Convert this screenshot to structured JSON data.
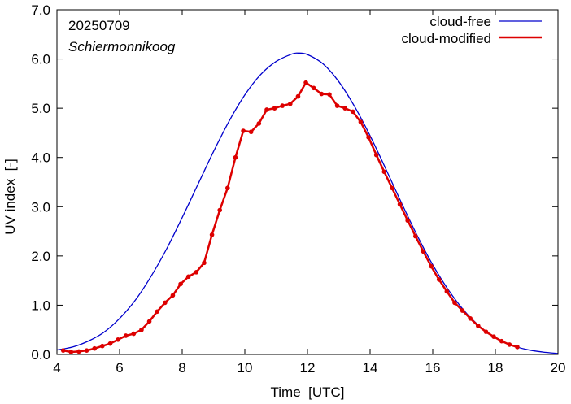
{
  "chart_data": {
    "type": "line",
    "xlabel": "Time  [UTC]",
    "ylabel": "UV index  [-]",
    "xlim": [
      4,
      20
    ],
    "ylim": [
      0,
      7
    ],
    "x_ticks": [
      4,
      6,
      8,
      10,
      12,
      14,
      16,
      18,
      20
    ],
    "x_tick_labels": [
      "4",
      "6",
      "8",
      "10",
      "12",
      "14",
      "16",
      "18",
      "20"
    ],
    "y_ticks": [
      0,
      1,
      2,
      3,
      4,
      5,
      6,
      7
    ],
    "y_tick_labels": [
      "0.0",
      "1.0",
      "2.0",
      "3.0",
      "4.0",
      "5.0",
      "6.0",
      "7.0"
    ],
    "grid": false,
    "legend_position": "top-right",
    "annotations": {
      "date": "20250709",
      "station": "Schiermonnikoog"
    },
    "series": [
      {
        "name": "cloud-free",
        "color": "#0000cc",
        "markers": false,
        "x": [
          4.0,
          4.5,
          5.0,
          5.5,
          6.0,
          6.5,
          7.0,
          7.5,
          8.0,
          8.5,
          9.0,
          9.5,
          10.0,
          10.5,
          11.0,
          11.5,
          11.7,
          12.0,
          12.5,
          13.0,
          13.5,
          14.0,
          14.5,
          15.0,
          15.5,
          16.0,
          16.5,
          17.0,
          17.5,
          18.0,
          18.5,
          19.0,
          19.5,
          20.0
        ],
        "y": [
          0.09,
          0.15,
          0.27,
          0.45,
          0.73,
          1.1,
          1.58,
          2.14,
          2.78,
          3.45,
          4.12,
          4.74,
          5.27,
          5.68,
          5.95,
          6.1,
          6.12,
          6.09,
          5.9,
          5.54,
          5.04,
          4.44,
          3.77,
          3.08,
          2.42,
          1.82,
          1.31,
          0.89,
          0.57,
          0.34,
          0.19,
          0.1,
          0.05,
          0.02
        ]
      },
      {
        "name": "cloud-modified",
        "color": "#dd0000",
        "markers": true,
        "x": [
          4.2,
          4.45,
          4.7,
          4.95,
          5.2,
          5.45,
          5.7,
          5.95,
          6.2,
          6.45,
          6.7,
          6.95,
          7.2,
          7.45,
          7.7,
          7.95,
          8.2,
          8.45,
          8.7,
          8.95,
          9.2,
          9.45,
          9.7,
          9.95,
          10.2,
          10.45,
          10.7,
          10.95,
          11.2,
          11.45,
          11.7,
          11.95,
          12.2,
          12.45,
          12.7,
          12.95,
          13.2,
          13.45,
          13.7,
          13.95,
          14.2,
          14.45,
          14.7,
          14.95,
          15.2,
          15.45,
          15.7,
          15.95,
          16.2,
          16.45,
          16.7,
          16.95,
          17.2,
          17.45,
          17.7,
          17.95,
          18.2,
          18.45,
          18.7
        ],
        "y": [
          0.08,
          0.05,
          0.06,
          0.08,
          0.12,
          0.17,
          0.22,
          0.3,
          0.38,
          0.42,
          0.5,
          0.67,
          0.87,
          1.05,
          1.2,
          1.43,
          1.58,
          1.67,
          1.86,
          2.43,
          2.93,
          3.38,
          4.0,
          4.54,
          4.52,
          4.69,
          4.97,
          5.0,
          5.05,
          5.09,
          5.24,
          5.52,
          5.41,
          5.29,
          5.28,
          5.05,
          5.0,
          4.93,
          4.72,
          4.41,
          4.05,
          3.71,
          3.38,
          3.05,
          2.72,
          2.4,
          2.09,
          1.79,
          1.52,
          1.28,
          1.05,
          0.89,
          0.73,
          0.58,
          0.46,
          0.36,
          0.27,
          0.2,
          0.15
        ]
      }
    ]
  }
}
